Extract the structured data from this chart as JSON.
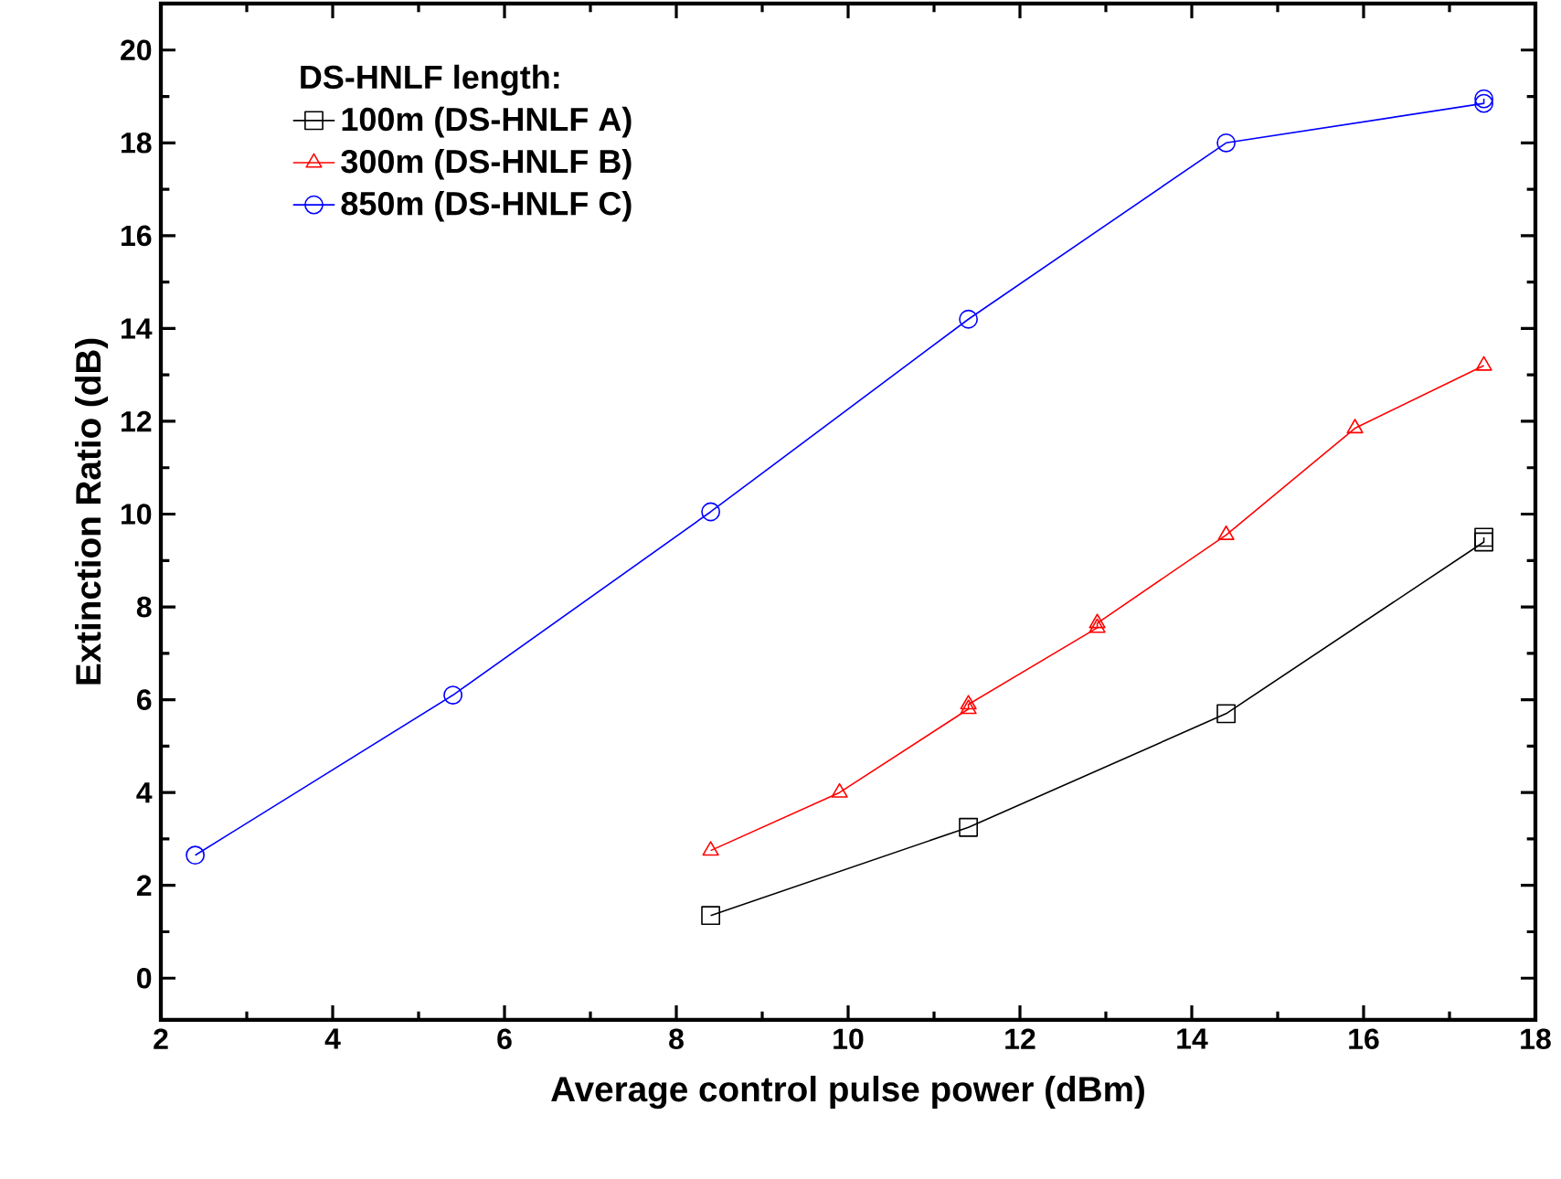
{
  "chart_data": {
    "type": "line",
    "xlabel": "Average control pulse power (dBm)",
    "ylabel": "Extinction Ratio (dB)",
    "legend_title": "DS-HNLF length:",
    "legend": "top left",
    "grid": false,
    "xlim": [
      2,
      18
    ],
    "ylim": [
      -0.9,
      21
    ],
    "xticks": [
      2,
      4,
      6,
      8,
      10,
      12,
      14,
      16,
      18
    ],
    "yticks": [
      0,
      2,
      4,
      6,
      8,
      10,
      12,
      14,
      16,
      18,
      20
    ],
    "series": [
      {
        "name": "100m (DS-HNLF A)",
        "color": "#000000",
        "marker": "square",
        "x": [
          8.4,
          11.4,
          14.4,
          17.4,
          17.4
        ],
        "values": [
          1.35,
          3.25,
          5.7,
          9.4,
          9.5
        ]
      },
      {
        "name": "300m (DS-HNLF B)",
        "color": "#ff0000",
        "marker": "triangle",
        "x": [
          8.4,
          9.9,
          11.4,
          11.4,
          12.9,
          12.9,
          14.4,
          15.9,
          17.4
        ],
        "values": [
          2.75,
          4.0,
          5.8,
          5.9,
          7.55,
          7.65,
          9.55,
          11.85,
          13.2
        ]
      },
      {
        "name": "850m (DS-HNLF C)",
        "color": "#0000ff",
        "marker": "circle",
        "x": [
          2.4,
          5.4,
          8.4,
          11.4,
          14.4,
          17.4,
          17.4
        ],
        "values": [
          2.65,
          6.1,
          10.05,
          14.2,
          18.0,
          18.85,
          18.95
        ]
      }
    ]
  }
}
